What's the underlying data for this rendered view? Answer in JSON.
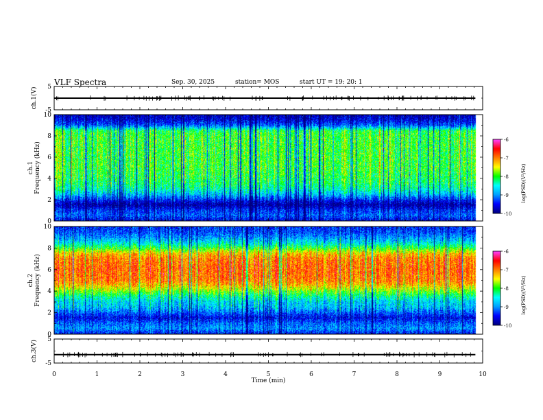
{
  "header": {
    "title": "VLF Spectra",
    "date": "Sep. 30, 2025",
    "station": "station= MOS",
    "start_ut": "start UT =   19: 20: 1"
  },
  "colors": {
    "ramp": [
      "#000080",
      "#0000ff",
      "#00a0ff",
      "#00ffff",
      "#00ff00",
      "#ffff00",
      "#ff8000",
      "#ff0000",
      "#ff40ff",
      "#ffffff"
    ]
  },
  "chart_data": [
    {
      "type": "line",
      "name": "ch1-waveform",
      "ylabel": "ch.1(V)",
      "ylim": [
        -5,
        5
      ],
      "yticks": [
        "5",
        "-5"
      ],
      "x": [
        0,
        9.83
      ],
      "y": [
        0,
        0
      ]
    },
    {
      "type": "heatmap",
      "name": "ch1-spectrogram",
      "ylabel": "ch.1 Frequency (kHz)",
      "ylim": [
        0,
        10
      ],
      "yticks": [
        "0",
        "2",
        "4",
        "6",
        "8",
        "10"
      ],
      "xlim": [
        0,
        10
      ],
      "data_end_min": 9.83,
      "profile_khz": [
        0,
        0.5,
        1,
        1.5,
        2,
        2.5,
        3,
        3.5,
        4,
        5,
        6,
        7,
        8,
        8.5,
        9,
        9.5,
        10
      ],
      "profile_level": [
        -9.6,
        -9.2,
        -9.4,
        -9.9,
        -9.4,
        -8.8,
        -8.4,
        -8.2,
        -8.1,
        -8.0,
        -8.0,
        -8.0,
        -8.0,
        -8.1,
        -9.2,
        -9.6,
        -9.8
      ],
      "colorbar": {
        "label": "log(PSD)(V²/Hz)",
        "range": [
          -10,
          -6
        ],
        "ticks": [
          "-6",
          "-7",
          "-8",
          "-9",
          "-10"
        ]
      }
    },
    {
      "type": "heatmap",
      "name": "ch2-spectrogram",
      "ylabel": "ch.2 Frequency (kHz)",
      "ylim": [
        0,
        10
      ],
      "yticks": [
        "0",
        "2",
        "4",
        "6",
        "8",
        "10"
      ],
      "xlim": [
        0,
        10
      ],
      "data_end_min": 9.83,
      "profile_khz": [
        0,
        0.5,
        1,
        1.5,
        2,
        2.5,
        3,
        3.5,
        4,
        4.5,
        5,
        6,
        7,
        7.5,
        8,
        8.5,
        9,
        9.5,
        10
      ],
      "profile_level": [
        -9.5,
        -9.0,
        -9.2,
        -9.6,
        -9.2,
        -8.8,
        -8.7,
        -8.3,
        -7.8,
        -7.3,
        -7.0,
        -6.9,
        -7.0,
        -7.3,
        -8.0,
        -8.6,
        -9.0,
        -9.3,
        -9.4
      ],
      "colorbar": {
        "label": "log(PSD)(V²/Hz)",
        "range": [
          -10,
          -6
        ],
        "ticks": [
          "-6",
          "-7",
          "-8",
          "-9",
          "-10"
        ]
      }
    },
    {
      "type": "line",
      "name": "ch3-waveform",
      "ylabel": "ch.3(V)",
      "ylim": [
        -5,
        5
      ],
      "yticks": [
        "5",
        "-5"
      ],
      "x": [
        0,
        9.83
      ],
      "y": [
        -1.5,
        -1.5
      ]
    }
  ],
  "xaxis": {
    "label": "Time (min)",
    "range": [
      0,
      10
    ],
    "ticks": [
      "0",
      "1",
      "2",
      "3",
      "4",
      "5",
      "6",
      "7",
      "8",
      "9",
      "10"
    ]
  }
}
